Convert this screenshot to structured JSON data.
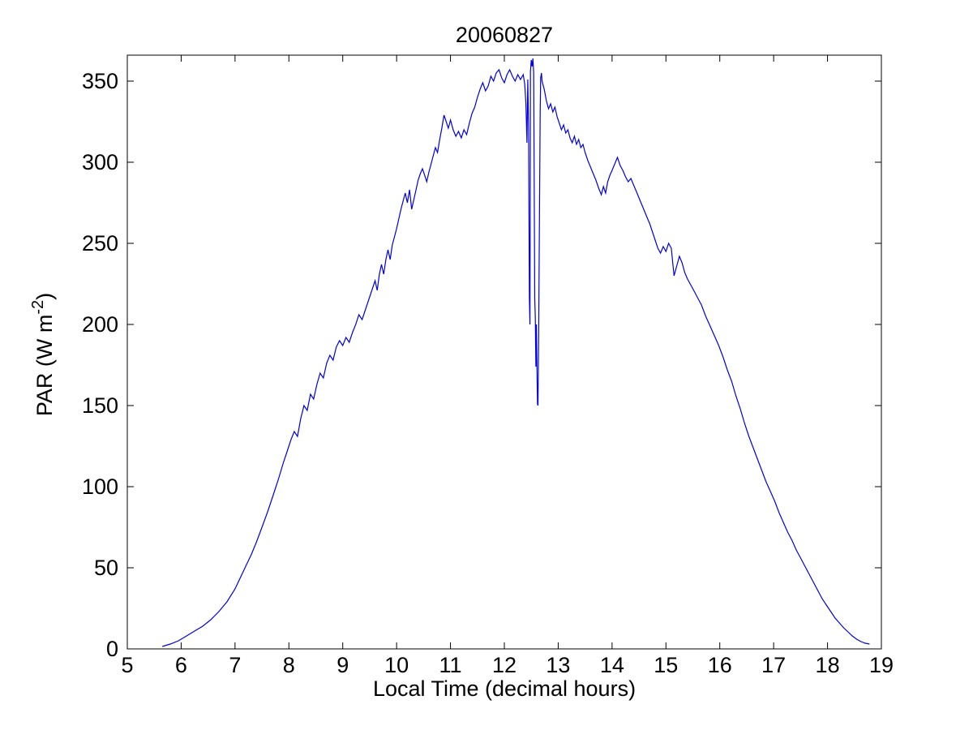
{
  "figure": {
    "background": "#ffffff",
    "title": "20060827",
    "xlabel": "Local Time (decimal hours)",
    "ylabel_prefix": "PAR (W m",
    "ylabel_superscript": "-2",
    "ylabel_suffix": ")"
  },
  "chart_data": {
    "type": "line",
    "title": "20060827",
    "xlabel": "Local Time (decimal hours)",
    "ylabel": "PAR (W m^-2)",
    "series_name": "PAR",
    "line_color": "#0000E0",
    "axis_color": "#000000",
    "grid": false,
    "legend_position": "none",
    "xlim": [
      5,
      19
    ],
    "ylim": [
      0,
      366
    ],
    "xticks": [
      5,
      6,
      7,
      8,
      9,
      10,
      11,
      12,
      13,
      14,
      15,
      16,
      17,
      18,
      19
    ],
    "yticks": [
      0,
      50,
      100,
      150,
      200,
      250,
      300,
      350
    ],
    "points": [
      [
        5.65,
        1.5
      ],
      [
        5.8,
        3
      ],
      [
        5.95,
        5
      ],
      [
        6.1,
        8
      ],
      [
        6.25,
        11
      ],
      [
        6.4,
        14
      ],
      [
        6.55,
        18
      ],
      [
        6.7,
        23
      ],
      [
        6.85,
        29
      ],
      [
        7.0,
        37
      ],
      [
        7.1,
        44
      ],
      [
        7.2,
        51
      ],
      [
        7.3,
        58
      ],
      [
        7.4,
        66
      ],
      [
        7.5,
        75
      ],
      [
        7.6,
        84
      ],
      [
        7.7,
        94
      ],
      [
        7.8,
        104
      ],
      [
        7.9,
        115
      ],
      [
        7.97,
        122
      ],
      [
        8.04,
        129
      ],
      [
        8.1,
        134
      ],
      [
        8.16,
        131
      ],
      [
        8.22,
        142
      ],
      [
        8.28,
        150
      ],
      [
        8.34,
        147
      ],
      [
        8.4,
        157
      ],
      [
        8.46,
        154
      ],
      [
        8.52,
        163
      ],
      [
        8.58,
        170
      ],
      [
        8.64,
        167
      ],
      [
        8.7,
        176
      ],
      [
        8.76,
        181
      ],
      [
        8.82,
        178
      ],
      [
        8.88,
        186
      ],
      [
        8.94,
        190
      ],
      [
        9.0,
        187
      ],
      [
        9.06,
        192
      ],
      [
        9.12,
        189
      ],
      [
        9.18,
        195
      ],
      [
        9.24,
        200
      ],
      [
        9.3,
        206
      ],
      [
        9.36,
        203
      ],
      [
        9.42,
        209
      ],
      [
        9.48,
        215
      ],
      [
        9.54,
        221
      ],
      [
        9.6,
        227
      ],
      [
        9.64,
        221
      ],
      [
        9.68,
        231
      ],
      [
        9.72,
        237
      ],
      [
        9.76,
        231
      ],
      [
        9.8,
        240
      ],
      [
        9.84,
        246
      ],
      [
        9.88,
        240
      ],
      [
        9.92,
        249
      ],
      [
        9.96,
        254
      ],
      [
        10.0,
        259
      ],
      [
        10.04,
        265
      ],
      [
        10.08,
        271
      ],
      [
        10.12,
        276
      ],
      [
        10.16,
        281
      ],
      [
        10.2,
        275
      ],
      [
        10.24,
        283
      ],
      [
        10.28,
        271
      ],
      [
        10.32,
        277
      ],
      [
        10.36,
        283
      ],
      [
        10.4,
        289
      ],
      [
        10.44,
        293
      ],
      [
        10.48,
        296
      ],
      [
        10.52,
        292
      ],
      [
        10.56,
        288
      ],
      [
        10.6,
        294
      ],
      [
        10.64,
        299
      ],
      [
        10.68,
        304
      ],
      [
        10.72,
        309
      ],
      [
        10.76,
        306
      ],
      [
        10.8,
        314
      ],
      [
        10.84,
        321
      ],
      [
        10.88,
        329
      ],
      [
        10.92,
        325
      ],
      [
        10.96,
        321
      ],
      [
        11.0,
        326
      ],
      [
        11.05,
        320
      ],
      [
        11.1,
        316
      ],
      [
        11.15,
        319
      ],
      [
        11.2,
        315
      ],
      [
        11.25,
        320
      ],
      [
        11.3,
        317
      ],
      [
        11.35,
        324
      ],
      [
        11.4,
        330
      ],
      [
        11.45,
        334
      ],
      [
        11.5,
        340
      ],
      [
        11.55,
        345
      ],
      [
        11.6,
        349
      ],
      [
        11.65,
        344
      ],
      [
        11.7,
        347
      ],
      [
        11.75,
        353
      ],
      [
        11.8,
        350
      ],
      [
        11.85,
        355
      ],
      [
        11.9,
        357
      ],
      [
        11.95,
        352
      ],
      [
        12.0,
        349
      ],
      [
        12.05,
        354
      ],
      [
        12.1,
        357
      ],
      [
        12.15,
        353
      ],
      [
        12.2,
        350
      ],
      [
        12.25,
        354
      ],
      [
        12.3,
        351
      ],
      [
        12.35,
        354
      ],
      [
        12.38,
        348
      ],
      [
        12.4,
        336
      ],
      [
        12.42,
        312
      ],
      [
        12.435,
        351
      ],
      [
        12.45,
        322
      ],
      [
        12.465,
        216
      ],
      [
        12.475,
        200
      ],
      [
        12.485,
        356
      ],
      [
        12.5,
        363
      ],
      [
        12.515,
        359
      ],
      [
        12.53,
        364
      ],
      [
        12.545,
        355
      ],
      [
        12.555,
        280
      ],
      [
        12.565,
        216
      ],
      [
        12.575,
        204
      ],
      [
        12.585,
        174
      ],
      [
        12.595,
        200
      ],
      [
        12.605,
        174
      ],
      [
        12.615,
        151
      ],
      [
        12.625,
        150
      ],
      [
        12.64,
        205
      ],
      [
        12.655,
        280
      ],
      [
        12.665,
        330
      ],
      [
        12.675,
        352
      ],
      [
        12.69,
        355
      ],
      [
        12.7,
        350
      ],
      [
        12.74,
        345
      ],
      [
        12.78,
        338
      ],
      [
        12.82,
        333
      ],
      [
        12.86,
        336
      ],
      [
        12.9,
        331
      ],
      [
        12.94,
        334
      ],
      [
        12.98,
        328
      ],
      [
        13.02,
        324
      ],
      [
        13.06,
        320
      ],
      [
        13.1,
        323
      ],
      [
        13.14,
        318
      ],
      [
        13.18,
        320
      ],
      [
        13.22,
        315
      ],
      [
        13.26,
        312
      ],
      [
        13.3,
        316
      ],
      [
        13.34,
        311
      ],
      [
        13.38,
        314
      ],
      [
        13.42,
        309
      ],
      [
        13.46,
        311
      ],
      [
        13.5,
        306
      ],
      [
        13.55,
        301
      ],
      [
        13.6,
        297
      ],
      [
        13.65,
        293
      ],
      [
        13.7,
        289
      ],
      [
        13.75,
        284
      ],
      [
        13.8,
        280
      ],
      [
        13.84,
        285
      ],
      [
        13.88,
        281
      ],
      [
        13.92,
        288
      ],
      [
        13.96,
        292
      ],
      [
        14.0,
        295
      ],
      [
        14.05,
        299
      ],
      [
        14.1,
        303
      ],
      [
        14.15,
        298
      ],
      [
        14.2,
        295
      ],
      [
        14.25,
        291
      ],
      [
        14.3,
        288
      ],
      [
        14.35,
        290
      ],
      [
        14.4,
        286
      ],
      [
        14.45,
        282
      ],
      [
        14.5,
        278
      ],
      [
        14.55,
        274
      ],
      [
        14.6,
        270
      ],
      [
        14.65,
        266
      ],
      [
        14.7,
        262
      ],
      [
        14.75,
        257
      ],
      [
        14.8,
        252
      ],
      [
        14.85,
        247
      ],
      [
        14.9,
        244
      ],
      [
        14.95,
        248
      ],
      [
        15.0,
        245
      ],
      [
        15.05,
        250
      ],
      [
        15.1,
        247
      ],
      [
        15.15,
        230
      ],
      [
        15.2,
        236
      ],
      [
        15.25,
        242
      ],
      [
        15.3,
        238
      ],
      [
        15.35,
        232
      ],
      [
        15.4,
        228
      ],
      [
        15.45,
        225
      ],
      [
        15.5,
        222
      ],
      [
        15.58,
        217
      ],
      [
        15.66,
        212
      ],
      [
        15.74,
        205
      ],
      [
        15.82,
        199
      ],
      [
        15.9,
        193
      ],
      [
        15.98,
        187
      ],
      [
        16.06,
        180
      ],
      [
        16.14,
        172
      ],
      [
        16.22,
        165
      ],
      [
        16.3,
        156
      ],
      [
        16.38,
        148
      ],
      [
        16.46,
        139
      ],
      [
        16.54,
        131
      ],
      [
        16.62,
        124
      ],
      [
        16.7,
        117
      ],
      [
        16.78,
        110
      ],
      [
        16.86,
        103
      ],
      [
        16.94,
        97
      ],
      [
        17.02,
        91
      ],
      [
        17.1,
        84
      ],
      [
        17.18,
        78
      ],
      [
        17.26,
        72
      ],
      [
        17.34,
        67
      ],
      [
        17.42,
        61
      ],
      [
        17.5,
        56
      ],
      [
        17.58,
        51
      ],
      [
        17.66,
        46
      ],
      [
        17.74,
        41
      ],
      [
        17.82,
        36
      ],
      [
        17.9,
        31
      ],
      [
        17.98,
        27
      ],
      [
        18.06,
        23
      ],
      [
        18.14,
        19
      ],
      [
        18.22,
        16
      ],
      [
        18.3,
        13
      ],
      [
        18.38,
        10.5
      ],
      [
        18.46,
        8
      ],
      [
        18.54,
        6
      ],
      [
        18.62,
        4.5
      ],
      [
        18.7,
        3.5
      ],
      [
        18.78,
        3
      ]
    ]
  }
}
